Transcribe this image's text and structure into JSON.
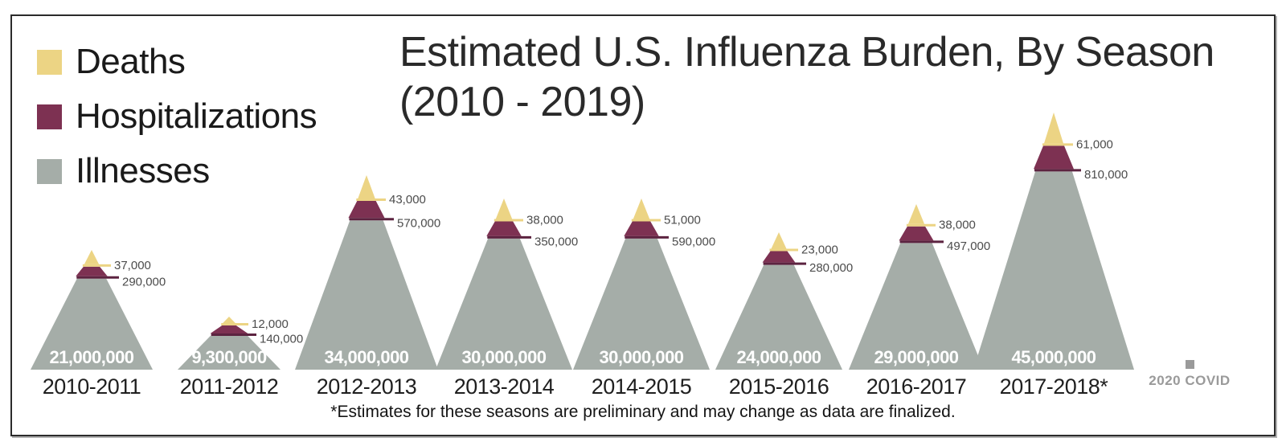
{
  "title": {
    "line1": "Estimated U.S. Influenza Burden, By Season",
    "line2": "(2010 - 2019)"
  },
  "legend": [
    {
      "label": "Deaths",
      "color": "#ecd484"
    },
    {
      "label": "Hospitalizations",
      "color": "#7d3152"
    },
    {
      "label": "Illnesses",
      "color": "#a5ada8"
    }
  ],
  "footnote": "*Estimates for these seasons are preliminary and may change as data are finalized.",
  "covid_marker": {
    "label": "2020 COVID",
    "color": "#9a9a9a"
  },
  "chart_data": {
    "type": "bar",
    "subtype": "pictorial-stacked-mountains",
    "title": "Estimated U.S. Influenza Burden, By Season (2010 - 2019)",
    "categories": [
      "2010-2011",
      "2011-2012",
      "2012-2013",
      "2013-2014",
      "2014-2015",
      "2015-2016",
      "2016-2017",
      "2017-2018*"
    ],
    "series": [
      {
        "name": "Illnesses",
        "values": [
          21000000,
          9300000,
          34000000,
          30000000,
          30000000,
          24000000,
          29000000,
          45000000
        ],
        "labels": [
          "21,000,000",
          "9,300,000",
          "34,000,000",
          "30,000,000",
          "30,000,000",
          "24,000,000",
          "29,000,000",
          "45,000,000"
        ]
      },
      {
        "name": "Hospitalizations",
        "values": [
          290000,
          140000,
          570000,
          350000,
          590000,
          280000,
          497000,
          810000
        ],
        "labels": [
          "290,000",
          "140,000",
          "570,000",
          "350,000",
          "590,000",
          "280,000",
          "497,000",
          "810,000"
        ]
      },
      {
        "name": "Deaths",
        "values": [
          37000,
          12000,
          43000,
          38000,
          51000,
          23000,
          38000,
          61000
        ],
        "labels": [
          "37,000",
          "12,000",
          "43,000",
          "38,000",
          "51,000",
          "23,000",
          "38,000",
          "61,000"
        ]
      }
    ],
    "max_value": 45000000,
    "legend_position": "top-left",
    "grid": false,
    "colors": {
      "illnesses": "#a5ada8",
      "hospitalizations": "#7d3152",
      "deaths": "#ecd484",
      "deaths_line": "#ecd484",
      "hospitalizations_line": "#5c2340",
      "value_label": "#4c4c4c",
      "illness_label": "#ffffff"
    }
  }
}
